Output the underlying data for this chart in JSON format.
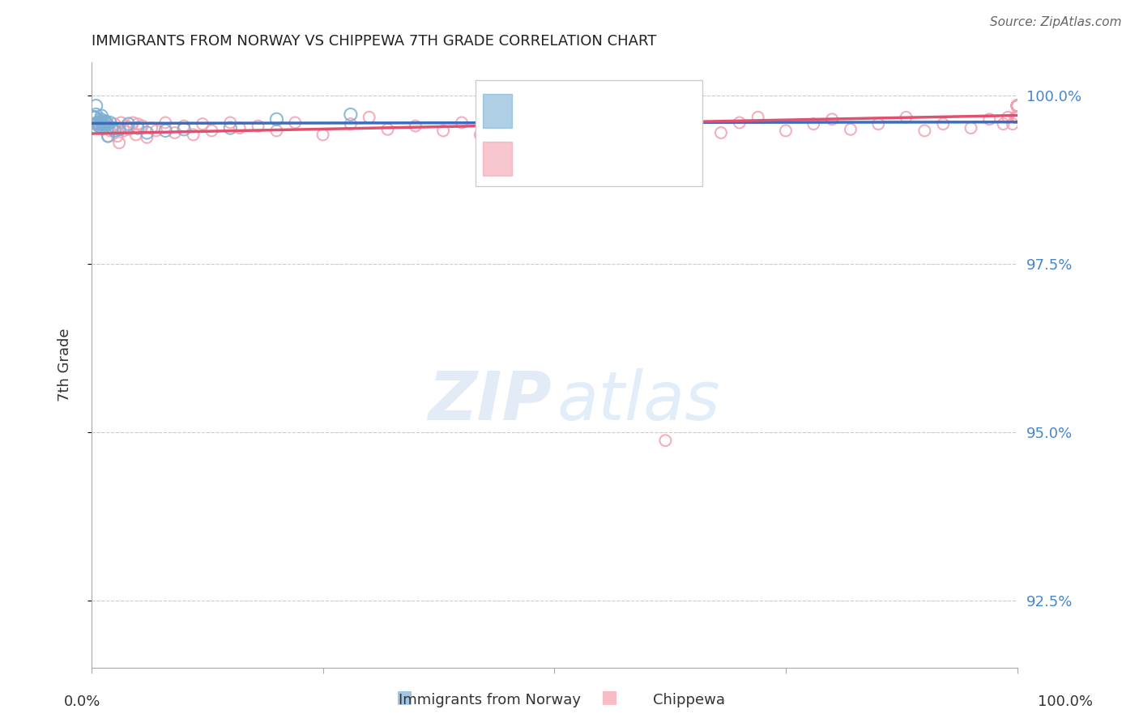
{
  "title": "IMMIGRANTS FROM NORWAY VS CHIPPEWA 7TH GRADE CORRELATION CHART",
  "source": "Source: ZipAtlas.com",
  "ylabel": "7th Grade",
  "xlim": [
    0.0,
    1.0
  ],
  "ylim": [
    0.915,
    1.005
  ],
  "yticks": [
    0.925,
    0.95,
    0.975,
    1.0
  ],
  "ytick_labels": [
    "92.5%",
    "95.0%",
    "97.5%",
    "100.0%"
  ],
  "norway_color": "#7bafd4",
  "chippewa_color": "#f4a0b0",
  "norway_line_color": "#3a6dbf",
  "chippewa_line_color": "#e05070",
  "norway_marker_size": 120,
  "chippewa_marker_size": 100,
  "grid_color": "#cccccc",
  "background_color": "#ffffff",
  "norway_x": [
    0.003,
    0.004,
    0.005,
    0.005,
    0.006,
    0.007,
    0.008,
    0.009,
    0.01,
    0.01,
    0.011,
    0.012,
    0.013,
    0.015,
    0.016,
    0.017,
    0.018,
    0.02,
    0.022,
    0.025,
    0.03,
    0.04,
    0.05,
    0.06,
    0.08,
    0.1,
    0.15,
    0.2,
    0.28
  ],
  "norway_y": [
    0.9968,
    0.9968,
    0.9972,
    0.9985,
    0.9958,
    0.996,
    0.9955,
    0.9958,
    0.9962,
    0.9965,
    0.997,
    0.9958,
    0.996,
    0.9962,
    0.996,
    0.9958,
    0.994,
    0.996,
    0.9952,
    0.9948,
    0.995,
    0.9958,
    0.9952,
    0.9945,
    0.9948,
    0.995,
    0.9952,
    0.9965,
    0.9972
  ],
  "chippewa_x": [
    0.003,
    0.005,
    0.008,
    0.01,
    0.012,
    0.015,
    0.018,
    0.02,
    0.022,
    0.025,
    0.028,
    0.03,
    0.032,
    0.035,
    0.038,
    0.04,
    0.045,
    0.048,
    0.05,
    0.055,
    0.06,
    0.065,
    0.07,
    0.08,
    0.09,
    0.1,
    0.11,
    0.12,
    0.13,
    0.15,
    0.16,
    0.18,
    0.2,
    0.22,
    0.25,
    0.28,
    0.3,
    0.32,
    0.35,
    0.38,
    0.4,
    0.42,
    0.45,
    0.48,
    0.5,
    0.52,
    0.55,
    0.58,
    0.6,
    0.62,
    0.65,
    0.68,
    0.7,
    0.72,
    0.75,
    0.78,
    0.8,
    0.82,
    0.85,
    0.88,
    0.9,
    0.92,
    0.95,
    0.97,
    0.985,
    0.99,
    0.995,
    0.998,
    1.0,
    1.0,
    1.0,
    1.0,
    1.0,
    1.0,
    1.0,
    1.0,
    1.0,
    1.0,
    1.0,
    1.0,
    1.0,
    1.0,
    1.0,
    1.0,
    1.0,
    1.0,
    1.0,
    1.0,
    1.0,
    1.0,
    1.0,
    1.0,
    1.0,
    1.0,
    1.0,
    1.0,
    1.0,
    1.0,
    1.0,
    1.0,
    1.0,
    1.0,
    1.0,
    1.0,
    0.62
  ],
  "chippewa_y": [
    0.9968,
    0.996,
    0.9955,
    0.9958,
    0.995,
    0.9962,
    0.994,
    0.9948,
    0.9952,
    0.9958,
    0.994,
    0.993,
    0.996,
    0.9948,
    0.9955,
    0.995,
    0.996,
    0.9942,
    0.9958,
    0.9955,
    0.9938,
    0.9952,
    0.9948,
    0.996,
    0.9945,
    0.9955,
    0.9942,
    0.9958,
    0.9948,
    0.996,
    0.9952,
    0.9955,
    0.9948,
    0.996,
    0.9942,
    0.9958,
    0.9968,
    0.995,
    0.9955,
    0.9948,
    0.996,
    0.9942,
    0.9955,
    0.9968,
    0.9948,
    0.996,
    0.9942,
    0.9955,
    0.996,
    0.9948,
    0.9958,
    0.9945,
    0.996,
    0.9968,
    0.9948,
    0.9958,
    0.9965,
    0.995,
    0.9958,
    0.9968,
    0.9948,
    0.9958,
    0.9952,
    0.9965,
    0.9958,
    0.9968,
    0.9958,
    0.9968,
    0.9985,
    0.9985,
    0.9985,
    0.9985,
    0.9985,
    0.9985,
    0.9985,
    0.9985,
    0.9985,
    0.9985,
    0.9985,
    0.9985,
    0.9985,
    0.9985,
    0.9985,
    0.9985,
    0.9985,
    0.9985,
    0.9968,
    0.9985,
    0.9968,
    0.9985,
    0.9985,
    0.9985,
    0.9968,
    0.9985,
    0.9968,
    0.9985,
    0.9985,
    0.9985,
    0.9985,
    0.9985,
    0.9985,
    0.9985,
    0.9985,
    0.9968,
    0.9488
  ]
}
